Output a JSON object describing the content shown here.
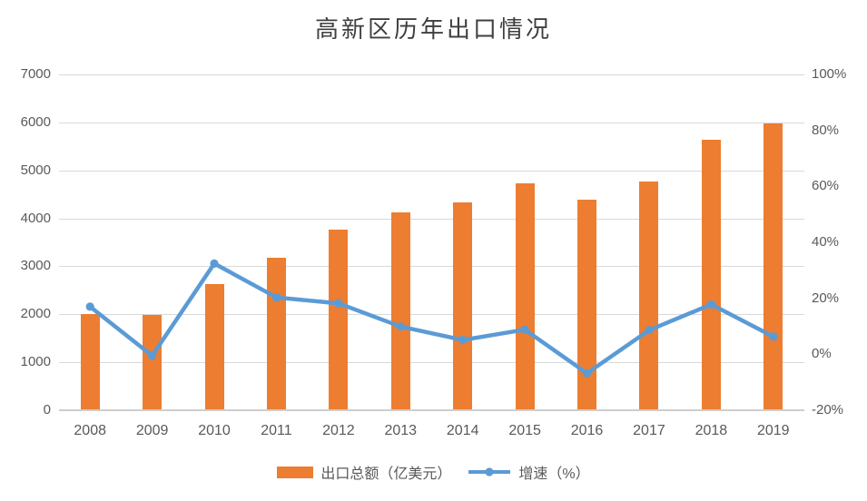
{
  "chart_data": {
    "type": "combo",
    "title": "高新区历年出口情况",
    "categories": [
      "2008",
      "2009",
      "2010",
      "2011",
      "2012",
      "2013",
      "2014",
      "2015",
      "2016",
      "2017",
      "2018",
      "2019"
    ],
    "series": [
      {
        "name": "出口总额（亿美元）",
        "type": "bar",
        "axis": "left",
        "color": "#ED7D31",
        "values": [
          2000,
          1995,
          2630,
          3180,
          3760,
          4130,
          4340,
          4730,
          4395,
          4775,
          5640,
          5985
        ]
      },
      {
        "name": "增速（%）",
        "type": "line",
        "axis": "right",
        "color": "#5B9BD5",
        "values": [
          17.0,
          -0.5,
          32.4,
          20.3,
          18.2,
          9.9,
          5.1,
          8.8,
          -6.8,
          8.6,
          17.8,
          6.3
        ]
      }
    ],
    "left_axis": {
      "min": 0,
      "max": 7000,
      "ticks": [
        "0",
        "1000",
        "2000",
        "3000",
        "4000",
        "5000",
        "6000",
        "7000"
      ]
    },
    "right_axis": {
      "min": -20,
      "max": 100,
      "ticks": [
        "-20%",
        "0%",
        "20%",
        "40%",
        "60%",
        "80%",
        "100%"
      ]
    },
    "grid": true,
    "legend_position": "bottom",
    "colors": {
      "grid": "#d9d9d9",
      "axis_line": "#cfcdcd",
      "tick_text": "#595959",
      "title_text": "#3f3f3f",
      "background": "#ffffff"
    }
  }
}
